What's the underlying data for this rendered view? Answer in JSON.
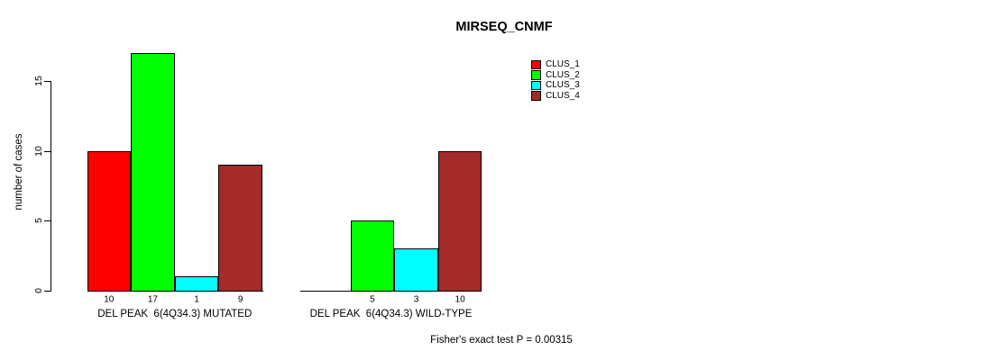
{
  "title": "MIRSEQ_CNMF",
  "y_axis": {
    "label": "number of cases",
    "ticks": [
      0,
      5,
      10,
      15
    ]
  },
  "legend": {
    "items": [
      {
        "label": "CLUS_1",
        "color": "#FF0000"
      },
      {
        "label": "CLUS_2",
        "color": "#00FF00"
      },
      {
        "label": "CLUS_3",
        "color": "#00FFFF"
      },
      {
        "label": "CLUS_4",
        "color": "#A52A2A"
      }
    ]
  },
  "footer": {
    "text": "Fisher's exact test P = 0.00315"
  },
  "chart_data": {
    "type": "bar",
    "title": "MIRSEQ_CNMF",
    "ylabel": "number of cases",
    "ylim": [
      0,
      17.5
    ],
    "yticks": [
      0,
      5,
      10,
      15
    ],
    "grid": false,
    "legend_position": "top-right",
    "series": [
      "CLUS_1",
      "CLUS_2",
      "CLUS_3",
      "CLUS_4"
    ],
    "series_colors": [
      "#FF0000",
      "#00FF00",
      "#00FFFF",
      "#A52A2A"
    ],
    "groups": [
      {
        "label": "DEL PEAK  6(4Q34.3) MUTATED",
        "values": [
          10,
          17,
          1,
          9
        ],
        "bar_labels": [
          "10",
          "17",
          "1",
          "9"
        ]
      },
      {
        "label": "DEL PEAK  6(4Q34.3) WILD-TYPE",
        "values": [
          0,
          5,
          3,
          10
        ],
        "bar_labels": [
          "",
          "5",
          "3",
          "10"
        ]
      }
    ],
    "annotation": "Fisher's exact test P = 0.00315"
  }
}
